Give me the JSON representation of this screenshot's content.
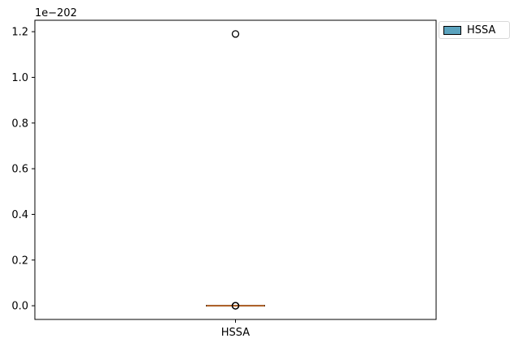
{
  "chart_data": {
    "type": "box",
    "categories": [
      "HSSA"
    ],
    "scale_label": "1e−202",
    "y_ticks": [
      "0.0",
      "0.2",
      "0.4",
      "0.6",
      "0.8",
      "1.0",
      "1.2"
    ],
    "y_tick_values": [
      0.0,
      0.2,
      0.4,
      0.6,
      0.8,
      1.0,
      1.2
    ],
    "ylim": [
      -0.06,
      1.25
    ],
    "series": [
      {
        "name": "HSSA",
        "q1": 0.0,
        "median": 0.0,
        "q3": 0.0,
        "whisker_low": 0.0,
        "whisker_high": 0.0,
        "outliers": [
          1.19,
          0.0,
          0.0,
          0.0
        ]
      }
    ],
    "legend": {
      "position": "outside-top-right",
      "labels": [
        "HSSA"
      ]
    },
    "colors": {
      "box_fill": "#5ba3be",
      "median": "#e07a2e",
      "outlier_edge": "#000000"
    },
    "grid": false
  }
}
